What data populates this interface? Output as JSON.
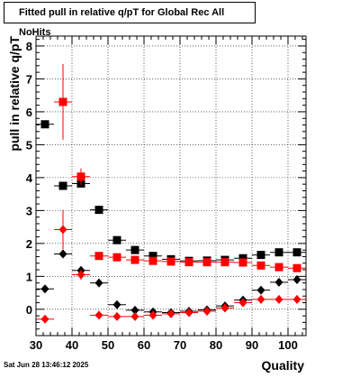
{
  "chart_data": {
    "type": "scatter",
    "title": "Fitted pull in relative q/pT for Global Rec All NoHits",
    "xlabel": "Quality",
    "ylabel": "pull in relative q/pT",
    "xlim": [
      30,
      105
    ],
    "ylim": [
      -0.8,
      8.3
    ],
    "xticks": [
      30,
      40,
      50,
      60,
      70,
      80,
      90,
      100
    ],
    "yticks": [
      0,
      1,
      2,
      3,
      4,
      5,
      6,
      7,
      8
    ],
    "grid": true,
    "x": [
      32.5,
      37.5,
      42.5,
      47.5,
      52.5,
      57.5,
      62.5,
      67.5,
      72.5,
      77.5,
      82.5,
      87.5,
      92.5,
      97.5,
      102.5
    ],
    "series": [
      {
        "marker": "square",
        "color": "#000000",
        "values": [
          5.62,
          3.75,
          3.82,
          3.02,
          2.1,
          1.8,
          1.62,
          1.52,
          1.47,
          1.48,
          1.5,
          1.55,
          1.65,
          1.73,
          1.73
        ],
        "errors": [
          0.1,
          0.1,
          0.06,
          0.04,
          0.03,
          0.02,
          0.02,
          0.02,
          0.02,
          0.02,
          0.02,
          0.02,
          0.02,
          0.02,
          0.02
        ]
      },
      {
        "marker": "square",
        "color": "#ff0000",
        "values": [
          null,
          6.3,
          4.03,
          1.62,
          1.58,
          1.5,
          1.47,
          1.45,
          1.43,
          1.43,
          1.43,
          1.42,
          1.33,
          1.28,
          1.25
        ],
        "errors": [
          null,
          1.15,
          0.25,
          0.05,
          0.03,
          0.02,
          0.02,
          0.02,
          0.02,
          0.02,
          0.02,
          0.02,
          0.02,
          0.02,
          0.02
        ]
      },
      {
        "marker": "diamond",
        "color": "#000000",
        "values": [
          0.62,
          1.68,
          1.18,
          0.8,
          0.14,
          -0.03,
          -0.08,
          -0.1,
          -0.06,
          -0.02,
          0.1,
          0.28,
          0.58,
          0.82,
          0.9
        ],
        "errors": [
          0.05,
          0.05,
          0.05,
          0.03,
          0.02,
          0.02,
          0.02,
          0.02,
          0.02,
          0.02,
          0.02,
          0.02,
          0.02,
          0.02,
          0.02
        ]
      },
      {
        "marker": "diamond",
        "color": "#ff0000",
        "values": [
          -0.3,
          2.42,
          1.05,
          -0.18,
          -0.22,
          -0.22,
          -0.18,
          -0.14,
          -0.1,
          -0.06,
          0.04,
          0.2,
          0.3,
          0.3,
          0.3
        ],
        "errors": [
          0.1,
          0.6,
          0.15,
          0.03,
          0.02,
          0.02,
          0.02,
          0.02,
          0.02,
          0.02,
          0.02,
          0.02,
          0.02,
          0.02,
          0.02
        ]
      }
    ]
  },
  "footer": {
    "timestamp": "Sat Jun 28 13:46:12 2025"
  }
}
